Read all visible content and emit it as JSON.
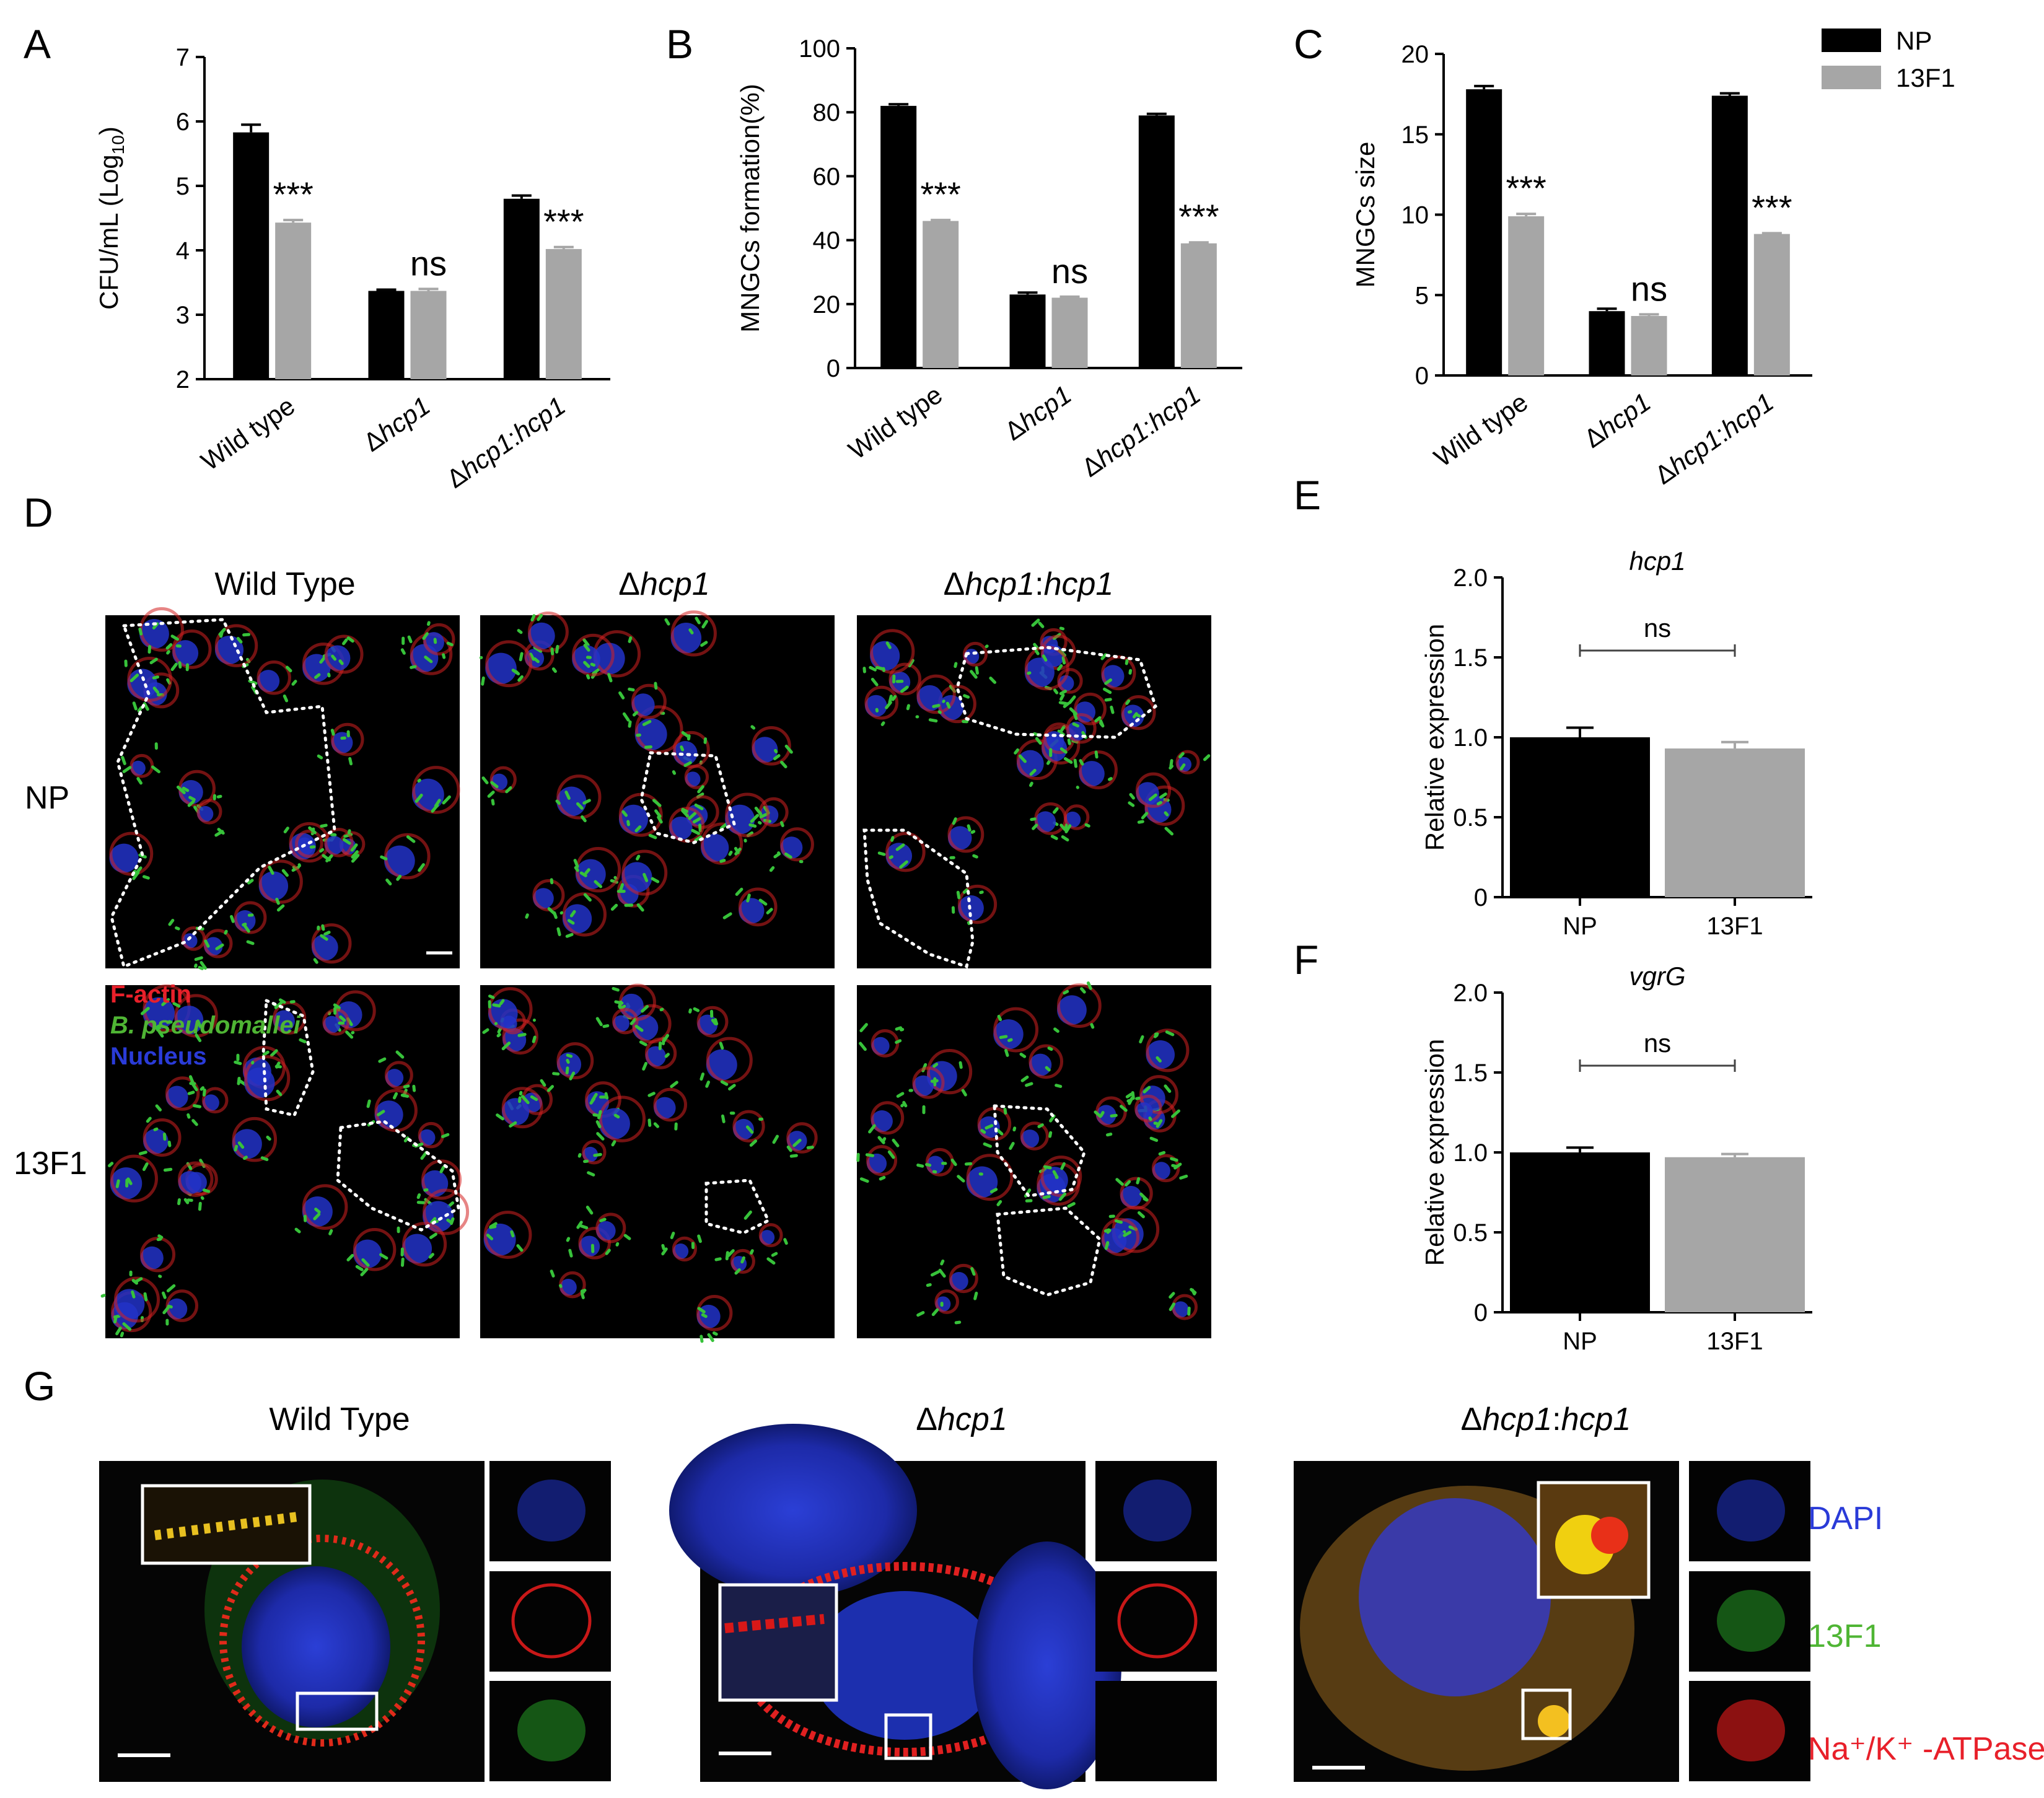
{
  "panel_labels": [
    "A",
    "B",
    "C",
    "D",
    "E",
    "F",
    "G"
  ],
  "legend": {
    "items": [
      {
        "label": "NP",
        "color": "#000000"
      },
      {
        "label": "13F1",
        "color": "#a6a6a6"
      }
    ]
  },
  "chart_data": [
    {
      "id": "A",
      "type": "bar",
      "categories": [
        "Wild type",
        "Δhcp1",
        "Δhcp1:hcp1"
      ],
      "series": [
        {
          "name": "NP",
          "values": [
            5.83,
            3.37,
            4.8
          ],
          "errors": [
            0.12,
            0.02,
            0.05
          ]
        },
        {
          "name": "13F1",
          "values": [
            4.43,
            3.37,
            4.02
          ],
          "errors": [
            0.04,
            0.03,
            0.03
          ]
        }
      ],
      "ylabel": "CFU/mL (Log10)",
      "ylim": [
        2,
        7
      ],
      "yticks": [
        "2",
        "3",
        "4",
        "5",
        "6",
        "7"
      ],
      "significance": [
        "***",
        "ns",
        "***"
      ]
    },
    {
      "id": "B",
      "type": "bar",
      "categories": [
        "Wild type",
        "Δhcp1",
        "Δhcp1:hcp1"
      ],
      "series": [
        {
          "name": "NP",
          "values": [
            82,
            23,
            79
          ],
          "errors": [
            0.5,
            0.6,
            0.5
          ]
        },
        {
          "name": "13F1",
          "values": [
            46,
            22,
            39
          ],
          "errors": [
            0.3,
            0.3,
            0.3
          ]
        }
      ],
      "ylabel": "MNGCs formation(%)",
      "ylim": [
        0,
        100
      ],
      "yticks": [
        "0",
        "20",
        "40",
        "60",
        "80",
        "100"
      ],
      "significance": [
        "***",
        "ns",
        "***"
      ]
    },
    {
      "id": "C",
      "type": "bar",
      "categories": [
        "Wild type",
        "Δhcp1",
        "Δhcp1:hcp1"
      ],
      "series": [
        {
          "name": "NP",
          "values": [
            17.8,
            4.0,
            17.4
          ],
          "errors": [
            0.2,
            0.15,
            0.15
          ]
        },
        {
          "name": "13F1",
          "values": [
            9.9,
            3.7,
            8.8
          ],
          "errors": [
            0.15,
            0.1,
            0.05
          ]
        }
      ],
      "ylabel": "MNGCs size",
      "ylim": [
        0,
        20
      ],
      "yticks": [
        "0",
        "5",
        "10",
        "15",
        "20"
      ],
      "significance": [
        "***",
        "ns",
        "***"
      ]
    },
    {
      "id": "E",
      "type": "bar",
      "title": "hcp1",
      "categories": [
        "NP",
        "13F1"
      ],
      "values": [
        1.0,
        0.93
      ],
      "errors": [
        0.06,
        0.04
      ],
      "colors": [
        "#000000",
        "#a6a6a6"
      ],
      "ylabel": "Relative expression",
      "ylim": [
        0,
        2.0
      ],
      "yticks": [
        "0",
        "0.5",
        "1.0",
        "1.5",
        "2.0"
      ],
      "significance": "ns"
    },
    {
      "id": "F",
      "type": "bar",
      "title": "vgrG",
      "categories": [
        "NP",
        "13F1"
      ],
      "values": [
        1.0,
        0.97
      ],
      "errors": [
        0.03,
        0.02
      ],
      "colors": [
        "#000000",
        "#a6a6a6"
      ],
      "ylabel": "Relative expression",
      "ylim": [
        0,
        2.0
      ],
      "yticks": [
        "0",
        "0.5",
        "1.0",
        "1.5",
        "2.0"
      ],
      "significance": "ns"
    }
  ],
  "panel_d": {
    "columns": [
      "Wild Type",
      "Δhcp1",
      "Δhcp1:hcp1"
    ],
    "rows": [
      "NP",
      "13F1"
    ],
    "stain_legend": [
      {
        "text": "F-actin",
        "color": "#e8202a"
      },
      {
        "text": "B. pseudomallei",
        "color": "#4fb534"
      },
      {
        "text": "Nucleus",
        "color": "#2a3bd8"
      }
    ]
  },
  "panel_g": {
    "columns": [
      "Wild Type",
      "Δhcp1",
      "Δhcp1:hcp1"
    ],
    "channels": [
      {
        "text": "DAPI",
        "color": "#2a3bd8"
      },
      {
        "text": "13F1",
        "color": "#4fb534"
      },
      {
        "text": "Na⁺/K⁺ -ATPase",
        "color": "#e8202a"
      }
    ]
  }
}
